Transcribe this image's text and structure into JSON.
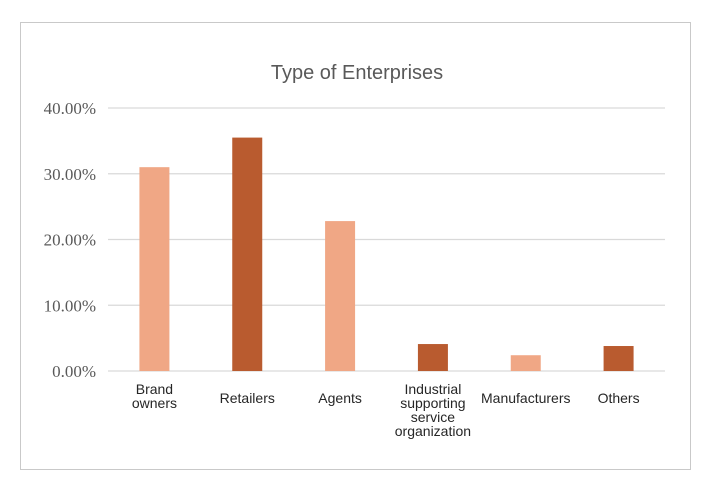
{
  "chart_data": {
    "type": "bar",
    "title": "Type of Enterprises",
    "xlabel": "",
    "ylabel": "",
    "categories": [
      [
        "Brand",
        "owners"
      ],
      [
        "Retailers"
      ],
      [
        "Agents"
      ],
      [
        "Industrial",
        "supporting",
        "service",
        "organization"
      ],
      [
        "Manufacturers"
      ],
      [
        "Others"
      ]
    ],
    "values": [
      0.31,
      0.355,
      0.228,
      0.041,
      0.024,
      0.038
    ],
    "ylim": [
      0,
      0.4
    ],
    "yticks": [
      "0.00%",
      "10.00%",
      "20.00%",
      "30.00%",
      "40.00%"
    ],
    "bar_colors": [
      "#f0a785",
      "#b95b2f",
      "#f0a785",
      "#b95b2f",
      "#f0a785",
      "#b95b2f"
    ],
    "grid": true,
    "legend": "none"
  }
}
